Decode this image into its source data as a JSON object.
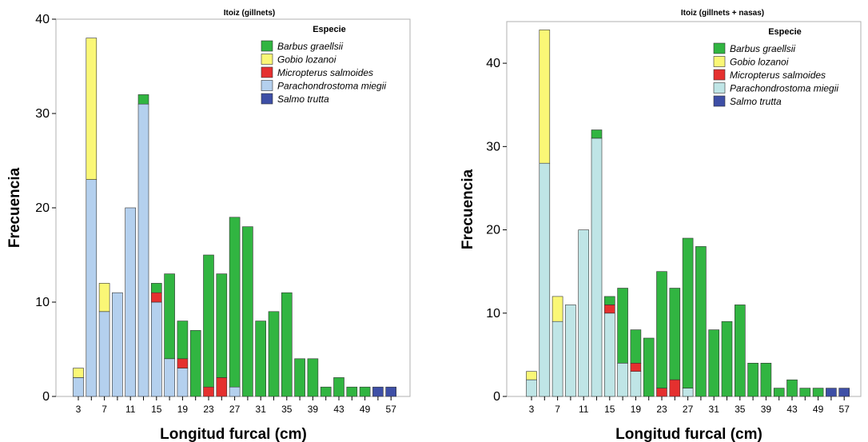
{
  "chart_data": [
    {
      "type": "bar",
      "stacked": true,
      "title": "Itoiz (gillnets)",
      "xlabel": "Longitud furcal (cm)",
      "ylabel": "Frecuencia",
      "ylim": [
        0,
        40
      ],
      "yticks": [
        0,
        10,
        20,
        30,
        40
      ],
      "legend_title": "Especie",
      "legend_position": "top-right",
      "grid": false,
      "categories": [
        "3",
        "5",
        "7",
        "9",
        "11",
        "13",
        "15",
        "17",
        "19",
        "21",
        "23",
        "25",
        "27",
        "29",
        "31",
        "33",
        "35",
        "37",
        "39",
        "41",
        "43",
        "45",
        "49",
        "55",
        "57"
      ],
      "category_labels": [
        "3",
        "",
        "7",
        "",
        "11",
        "",
        "15",
        "",
        "19",
        "",
        "23",
        "",
        "27",
        "",
        "31",
        "",
        "35",
        "",
        "39",
        "",
        "43",
        "",
        "49",
        "",
        "57"
      ],
      "series": [
        {
          "name": "Parachondrostoma miegii",
          "color": "#b4d0ee",
          "values": [
            2,
            23,
            9,
            11,
            20,
            31,
            10,
            4,
            3,
            0,
            0,
            0,
            1,
            0,
            0,
            0,
            0,
            0,
            0,
            0,
            0,
            0,
            0,
            0,
            0
          ]
        },
        {
          "name": "Micropterus salmoides",
          "color": "#e5302f",
          "values": [
            0,
            0,
            0,
            0,
            0,
            0,
            1,
            0,
            1,
            0,
            1,
            2,
            0,
            0,
            0,
            0,
            0,
            0,
            0,
            0,
            0,
            0,
            0,
            0,
            0
          ]
        },
        {
          "name": "Gobio lozanoi",
          "color": "#faf776",
          "values": [
            1,
            15,
            3,
            0,
            0,
            0,
            0,
            0,
            0,
            0,
            0,
            0,
            0,
            0,
            0,
            0,
            0,
            0,
            0,
            0,
            0,
            0,
            0,
            0,
            0
          ]
        },
        {
          "name": "Barbus graellsii",
          "color": "#31b541",
          "values": [
            0,
            0,
            0,
            0,
            0,
            1,
            1,
            9,
            4,
            7,
            14,
            11,
            18,
            18,
            8,
            9,
            11,
            4,
            4,
            1,
            2,
            1,
            1,
            0,
            0
          ]
        },
        {
          "name": "Salmo trutta",
          "color": "#3e4fa6",
          "values": [
            0,
            0,
            0,
            0,
            0,
            0,
            0,
            0,
            0,
            0,
            0,
            0,
            0,
            0,
            0,
            0,
            0,
            0,
            0,
            0,
            0,
            0,
            0,
            1,
            1
          ]
        }
      ],
      "legend_order": [
        "Barbus graellsii",
        "Gobio lozanoi",
        "Micropterus salmoides",
        "Parachondrostoma miegii",
        "Salmo trutta"
      ]
    },
    {
      "type": "bar",
      "stacked": true,
      "title": "Itoiz (gillnets + nasas)",
      "xlabel": "Longitud furcal (cm)",
      "ylabel": "Frecuencia",
      "ylim": [
        0,
        45
      ],
      "yticks": [
        0,
        10,
        20,
        30,
        40
      ],
      "legend_title": "Especie",
      "legend_position": "top-right",
      "grid": false,
      "categories": [
        "3",
        "5",
        "7",
        "9",
        "11",
        "13",
        "15",
        "17",
        "19",
        "21",
        "23",
        "25",
        "27",
        "29",
        "31",
        "33",
        "35",
        "37",
        "39",
        "41",
        "43",
        "45",
        "49",
        "55",
        "57"
      ],
      "category_labels": [
        "3",
        "",
        "7",
        "",
        "11",
        "",
        "15",
        "",
        "19",
        "",
        "23",
        "",
        "27",
        "",
        "31",
        "",
        "35",
        "",
        "39",
        "",
        "43",
        "",
        "49",
        "",
        "57"
      ],
      "series": [
        {
          "name": "Parachondrostoma miegii",
          "color": "#bfe5e6",
          "values": [
            2,
            28,
            9,
            11,
            20,
            31,
            10,
            4,
            3,
            0,
            0,
            0,
            1,
            0,
            0,
            0,
            0,
            0,
            0,
            0,
            0,
            0,
            0,
            0,
            0
          ]
        },
        {
          "name": "Micropterus salmoides",
          "color": "#e5302f",
          "values": [
            0,
            0,
            0,
            0,
            0,
            0,
            1,
            0,
            1,
            0,
            1,
            2,
            0,
            0,
            0,
            0,
            0,
            0,
            0,
            0,
            0,
            0,
            0,
            0,
            0
          ]
        },
        {
          "name": "Gobio lozanoi",
          "color": "#faf776",
          "values": [
            1,
            16,
            3,
            0,
            0,
            0,
            0,
            0,
            0,
            0,
            0,
            0,
            0,
            0,
            0,
            0,
            0,
            0,
            0,
            0,
            0,
            0,
            0,
            0,
            0
          ]
        },
        {
          "name": "Barbus graellsii",
          "color": "#31b541",
          "values": [
            0,
            0,
            0,
            0,
            0,
            1,
            1,
            9,
            4,
            7,
            14,
            11,
            18,
            18,
            8,
            9,
            11,
            4,
            4,
            1,
            2,
            1,
            1,
            0,
            0
          ]
        },
        {
          "name": "Salmo trutta",
          "color": "#3e4fa6",
          "values": [
            0,
            0,
            0,
            0,
            0,
            0,
            0,
            0,
            0,
            0,
            0,
            0,
            0,
            0,
            0,
            0,
            0,
            0,
            0,
            0,
            0,
            0,
            0,
            1,
            1
          ]
        }
      ],
      "legend_order": [
        "Barbus graellsii",
        "Gobio lozanoi",
        "Micropterus salmoides",
        "Parachondrostoma miegii",
        "Salmo trutta"
      ]
    }
  ]
}
